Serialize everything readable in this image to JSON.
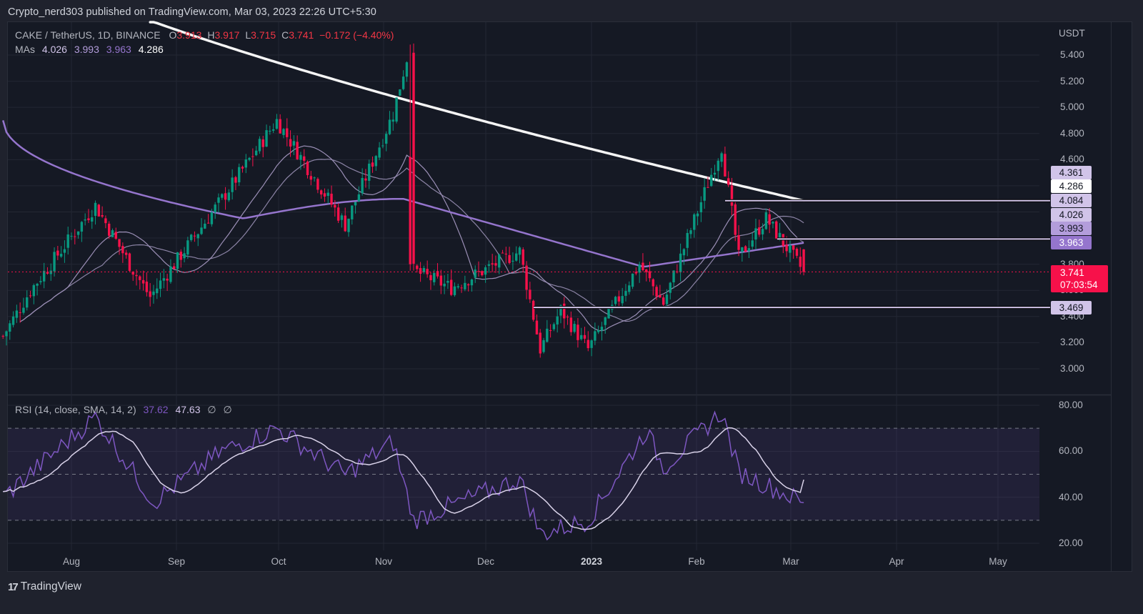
{
  "header": {
    "publish_line": "Crypto_nerd303 published on TradingView.com, Mar 03, 2023 22:26 UTC+5:30"
  },
  "legend": {
    "symbol": "CAKE / TetherUS, 1D, BINANCE",
    "o_label": "O",
    "o_value": "3.913",
    "h_label": "H",
    "h_value": "3.917",
    "l_label": "L",
    "l_value": "3.715",
    "c_label": "C",
    "c_value": "3.741",
    "change": "−0.172 (−4.40%)",
    "mas_label": "MAs",
    "ma_values": [
      "4.026",
      "3.993",
      "3.963",
      "4.286"
    ],
    "rsi_label": "RSI (14, close, SMA, 14, 2)",
    "rsi_value": "37.62",
    "rsi_sma_value": "47.63",
    "rsi_extra": [
      "∅",
      "∅"
    ]
  },
  "colors": {
    "up": "#089981",
    "down": "#f7114a",
    "ma_fast": "#9b8fb6",
    "ma_mid": "#8c84a6",
    "ma_100": "#9575cd",
    "ma_200": "#f5f5f5",
    "rsi_line": "#7e57c2",
    "rsi_sma": "#d9d2e9",
    "level_line": "#d1c4e9",
    "grid": "#232733"
  },
  "price_axis": {
    "unit": "USDT",
    "ticks": [
      "5.400",
      "5.200",
      "5.000",
      "4.800",
      "4.600",
      "3.800",
      "3.600",
      "3.400",
      "3.200",
      "3.000"
    ]
  },
  "price_tags": [
    {
      "value": "4.361",
      "bg": "#d1c4e9"
    },
    {
      "value": "4.286",
      "bg": "#ffffff"
    },
    {
      "value": "4.084",
      "bg": "#d1c4e9"
    },
    {
      "value": "4.026",
      "bg": "#d1c4e9"
    },
    {
      "value": "3.993",
      "bg": "#b39ddb"
    },
    {
      "value": "3.963",
      "bg": "#9575cd"
    },
    {
      "value": "3.469",
      "bg": "#d1c4e9"
    }
  ],
  "last_price": {
    "value": "3.741",
    "countdown": "07:03:54"
  },
  "rsi_axis": {
    "ticks": [
      "80.00",
      "60.00",
      "40.00",
      "20.00"
    ],
    "upper_band": 70,
    "middle_band": 50,
    "lower_band": 30
  },
  "time_axis": {
    "labels": [
      {
        "text": "Aug",
        "bold": false
      },
      {
        "text": "Sep",
        "bold": false
      },
      {
        "text": "Oct",
        "bold": false
      },
      {
        "text": "Nov",
        "bold": false
      },
      {
        "text": "Dec",
        "bold": false
      },
      {
        "text": "2023",
        "bold": true
      },
      {
        "text": "Feb",
        "bold": false
      },
      {
        "text": "Mar",
        "bold": false
      },
      {
        "text": "Apr",
        "bold": false
      },
      {
        "text": "May",
        "bold": false
      }
    ]
  },
  "footer": {
    "brand": "TradingView",
    "logo": "17"
  },
  "chart_data": [
    {
      "type": "candlestick",
      "title": "CAKE / TetherUS, 1D, BINANCE",
      "ylabel": "USDT",
      "ylim": [
        2.85,
        5.55
      ],
      "x_range": [
        "2022-07-12",
        "2023-05-20"
      ],
      "last": {
        "open": 3.913,
        "high": 3.917,
        "low": 3.715,
        "close": 3.741,
        "change": -0.172,
        "change_pct": -4.4
      },
      "moving_averages": [
        {
          "name": "MA fast",
          "last": 4.026
        },
        {
          "name": "MA mid",
          "last": 3.993
        },
        {
          "name": "MA 100",
          "last": 3.963
        },
        {
          "name": "MA 200",
          "last": 4.286
        }
      ],
      "horizontal_levels": [
        4.286,
        3.993,
        3.469
      ],
      "axis_tags": [
        4.361,
        4.286,
        4.084,
        4.026,
        3.993,
        3.963,
        3.741,
        3.469
      ],
      "key_points": [
        {
          "date": "2022-07-12",
          "price": 3.25
        },
        {
          "date": "2022-07-20",
          "price": 3.6
        },
        {
          "date": "2022-08-08",
          "price": 4.25
        },
        {
          "date": "2022-08-18",
          "price": 3.8
        },
        {
          "date": "2022-08-24",
          "price": 3.55
        },
        {
          "date": "2022-09-14",
          "price": 4.3
        },
        {
          "date": "2022-09-30",
          "price": 4.9
        },
        {
          "date": "2022-10-20",
          "price": 4.1
        },
        {
          "date": "2022-11-03",
          "price": 4.95
        },
        {
          "date": "2022-11-08",
          "price": 5.48
        },
        {
          "date": "2022-11-09",
          "price": 3.75
        },
        {
          "date": "2022-11-20",
          "price": 3.62
        },
        {
          "date": "2022-12-10",
          "price": 3.9
        },
        {
          "date": "2022-12-16",
          "price": 3.15
        },
        {
          "date": "2022-12-22",
          "price": 3.45
        },
        {
          "date": "2022-12-30",
          "price": 3.15
        },
        {
          "date": "2023-01-14",
          "price": 3.8
        },
        {
          "date": "2023-01-21",
          "price": 3.5
        },
        {
          "date": "2023-02-07",
          "price": 4.7
        },
        {
          "date": "2023-02-12",
          "price": 3.85
        },
        {
          "date": "2023-02-20",
          "price": 4.15
        },
        {
          "date": "2023-03-03",
          "price": 3.741
        }
      ]
    },
    {
      "type": "line",
      "title": "RSI (14, close, SMA, 14, 2)",
      "ylim": [
        15,
        85
      ],
      "bands": [
        70,
        50,
        30
      ],
      "series": [
        {
          "name": "RSI",
          "last": 37.62
        },
        {
          "name": "RSI SMA",
          "last": 47.63
        }
      ],
      "key_points": [
        {
          "date": "2022-07-12",
          "rsi": 40
        },
        {
          "date": "2022-08-08",
          "rsi": 75
        },
        {
          "date": "2022-08-25",
          "rsi": 38
        },
        {
          "date": "2022-09-14",
          "rsi": 60
        },
        {
          "date": "2022-09-30",
          "rsi": 70
        },
        {
          "date": "2022-10-20",
          "rsi": 50
        },
        {
          "date": "2022-11-03",
          "rsi": 64
        },
        {
          "date": "2022-11-09",
          "rsi": 30
        },
        {
          "date": "2022-12-10",
          "rsi": 48
        },
        {
          "date": "2022-12-16",
          "rsi": 24
        },
        {
          "date": "2022-12-30",
          "rsi": 30
        },
        {
          "date": "2023-01-16",
          "rsi": 69
        },
        {
          "date": "2023-01-21",
          "rsi": 53
        },
        {
          "date": "2023-02-07",
          "rsi": 77
        },
        {
          "date": "2023-02-12",
          "rsi": 51
        },
        {
          "date": "2023-03-03",
          "rsi": 37.62
        }
      ]
    }
  ]
}
